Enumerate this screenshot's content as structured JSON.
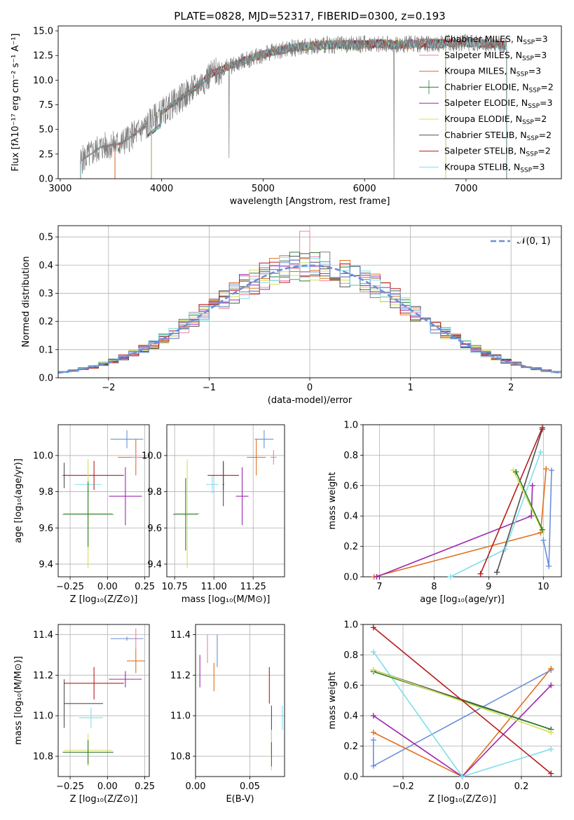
{
  "colors": {
    "Chabrier MILES": "#808080",
    "Salpeter MILES": "#f080a0",
    "Kroupa MILES": "#e07020",
    "Chabrier ELODIE": "#2e7d32",
    "Salpeter ELODIE": "#9c27b0",
    "Kroupa ELODIE": "#d4e157",
    "Chabrier STELIB": "#505050",
    "Salpeter STELIB": "#b71c1c",
    "Kroupa STELIB": "#80deea",
    "extra": "#6a8fd8",
    "gauss": "#6a8fd8",
    "grid": "#b0b0b0"
  },
  "chart_data": [
    {
      "id": "spectrum",
      "type": "line",
      "title": "PLATE=0828, MJD=52317, FIBERID=0300, z=0.193",
      "xlabel": "wavelength [Angstrom, rest frame]",
      "ylabel": "Flux [fλ10⁻¹⁷ erg cm⁻² s⁻¹ A⁻¹]",
      "xlim": [
        2980,
        7940
      ],
      "ylim": [
        0,
        15.5
      ],
      "xticks": [
        "3000",
        "4000",
        "5000",
        "6000",
        "7000"
      ],
      "yticks": [
        "0.0",
        "2.5",
        "5.0",
        "7.5",
        "10.0",
        "12.5",
        "15.0"
      ],
      "grid": false,
      "legend": "top-right",
      "legend_entries": [
        {
          "label": "Chabrier MILES, N",
          "sub": "SSP",
          "suffix": "=3",
          "color": "#808080"
        },
        {
          "label": "Salpeter MILES, N",
          "sub": "SSP",
          "suffix": "=3",
          "color": "#f080a0"
        },
        {
          "label": "Kroupa MILES, N",
          "sub": "SSP",
          "suffix": "=3",
          "color": "#e07020"
        },
        {
          "label": "Chabrier ELODIE, N",
          "sub": "SSP",
          "suffix": "=2",
          "color": "#2e7d32"
        },
        {
          "label": "Salpeter ELODIE, N",
          "sub": "SSP",
          "suffix": "=3",
          "color": "#9c27b0"
        },
        {
          "label": "Kroupa ELODIE, N",
          "sub": "SSP",
          "suffix": "=2",
          "color": "#d4e157"
        },
        {
          "label": "Chabrier STELIB, N",
          "sub": "SSP",
          "suffix": "=2",
          "color": "#505050"
        },
        {
          "label": "Salpeter STELIB, N",
          "sub": "SSP",
          "suffix": "=2",
          "color": "#b71c1c"
        },
        {
          "label": "Kroupa STELIB, N",
          "sub": "SSP",
          "suffix": "=3",
          "color": "#80deea"
        }
      ],
      "continuum_x": [
        3200,
        3400,
        3600,
        3800,
        3950,
        4100,
        4300,
        4500,
        4700,
        4900,
        5100,
        5300,
        5500,
        5700,
        5900,
        6100,
        6300,
        6500,
        6700,
        6900,
        7100,
        7300,
        7500,
        7940
      ],
      "continuum_y": [
        1.8,
        3.2,
        3.6,
        5.0,
        6.3,
        7.5,
        9.0,
        10.7,
        11.5,
        12.3,
        12.9,
        13.3,
        13.5,
        13.6,
        13.6,
        13.7,
        13.6,
        13.7,
        13.7,
        13.8,
        13.8,
        13.6,
        13.5,
        13.4
      ],
      "data_range": [
        3200,
        7400
      ],
      "model_ranges": {
        "Chabrier MILES": [
          3540,
          7400
        ],
        "Salpeter MILES": [
          3540,
          7400
        ],
        "Kroupa MILES": [
          3540,
          7400
        ],
        "Chabrier ELODIE": [
          3900,
          6800
        ],
        "Salpeter ELODIE": [
          3900,
          6800
        ],
        "Kroupa ELODIE": [
          3900,
          6800
        ],
        "Chabrier STELIB": [
          3200,
          7400
        ],
        "Salpeter STELIB": [
          3200,
          7400
        ],
        "Kroupa STELIB": [
          3200,
          7400
        ]
      }
    },
    {
      "id": "residuals",
      "type": "line",
      "xlabel": "(data-model)/error",
      "ylabel": "Normed distribution",
      "xlim": [
        -2.5,
        2.5
      ],
      "ylim": [
        0,
        0.54
      ],
      "xticks": [
        "−2",
        "−1",
        "0",
        "1",
        "2"
      ],
      "yticks": [
        "0.0",
        "0.1",
        "0.2",
        "0.3",
        "0.4",
        "0.5"
      ],
      "grid": true,
      "legend": "top-right",
      "gauss_label": "𝒩(0, 1)",
      "bin_width": 0.1,
      "bin_start": -2.5
    },
    {
      "id": "age_vs_Z",
      "type": "scatter",
      "xlabel": "Z [log₁₀(Z/Z⊙)]",
      "ylabel": "age  [log₁₀(age/yr)]",
      "xlim": [
        -0.33,
        0.28
      ],
      "ylim": [
        9.33,
        10.17
      ],
      "xticks": [
        "−0.25",
        "0.00",
        "0.25"
      ],
      "yticks": [
        "9.4",
        "9.6",
        "9.8",
        "10.0"
      ],
      "grid": true,
      "points": [
        {
          "model": "extra",
          "x": 0.13,
          "y": 10.09,
          "xerr": 0.11,
          "yerr": 0.05
        },
        {
          "model": "Kroupa MILES",
          "x": 0.19,
          "y": 9.99,
          "xerr": 0.12,
          "yerr": 0.1
        },
        {
          "model": "Salpeter MILES",
          "x": 0.19,
          "y": 9.99,
          "xerr": 0.03,
          "yerr": 0.04
        },
        {
          "model": "Salpeter ELODIE",
          "x": 0.12,
          "y": 9.775,
          "xerr": 0.11,
          "yerr": 0.16
        },
        {
          "model": "Kroupa STELIB",
          "x": -0.13,
          "y": 9.84,
          "xerr": 0.09,
          "yerr": 0.05
        },
        {
          "model": "Salpeter STELIB",
          "x": -0.09,
          "y": 9.89,
          "xerr": 0.2,
          "yerr": 0.08
        },
        {
          "model": "Chabrier STELIB",
          "x": -0.29,
          "y": 9.89,
          "xerr": 0.01,
          "yerr": 0.07
        },
        {
          "model": "Kroupa ELODIE",
          "x": -0.13,
          "y": 9.68,
          "xerr": 0.16,
          "yerr": 0.3
        },
        {
          "model": "Chabrier ELODIE",
          "x": -0.13,
          "y": 9.675,
          "xerr": 0.17,
          "yerr": 0.18
        }
      ]
    },
    {
      "id": "age_vs_mass",
      "type": "scatter",
      "xlabel": "mass [log₁₀(M/M⊙)]",
      "ylabel": "",
      "xlim": [
        10.7,
        11.45
      ],
      "ylim": [
        9.33,
        10.17
      ],
      "xticks": [
        "10.75",
        "11.00",
        "11.25"
      ],
      "yticks": [
        "9.4",
        "9.6",
        "9.8",
        "10.0"
      ],
      "grid": true,
      "points": [
        {
          "model": "extra",
          "x": 11.32,
          "y": 10.09,
          "xerr": 0.06,
          "yerr": 0.05
        },
        {
          "model": "Kroupa MILES",
          "x": 11.27,
          "y": 9.99,
          "xerr": 0.06,
          "yerr": 0.1
        },
        {
          "model": "Salpeter MILES",
          "x": 11.38,
          "y": 9.99,
          "xerr": 0.02,
          "yerr": 0.04
        },
        {
          "model": "Salpeter ELODIE",
          "x": 11.18,
          "y": 9.775,
          "xerr": 0.04,
          "yerr": 0.16
        },
        {
          "model": "Kroupa STELIB",
          "x": 10.99,
          "y": 9.84,
          "xerr": 0.04,
          "yerr": 0.05
        },
        {
          "model": "Salpeter STELIB",
          "x": 11.06,
          "y": 9.89,
          "xerr": 0.1,
          "yerr": 0.08
        },
        {
          "model": "Chabrier STELIB",
          "x": 11.06,
          "y": 9.84,
          "xerr": 0.005,
          "yerr": 0.12
        },
        {
          "model": "Kroupa ELODIE",
          "x": 10.83,
          "y": 9.68,
          "xerr": 0.08,
          "yerr": 0.3
        },
        {
          "model": "Chabrier ELODIE",
          "x": 10.82,
          "y": 9.675,
          "xerr": 0.08,
          "yerr": 0.2
        }
      ]
    },
    {
      "id": "weight_vs_age",
      "type": "line",
      "xlabel": "age  [log₁₀(age/yr)]",
      "ylabel": "mass weight",
      "xlim": [
        6.7,
        10.33
      ],
      "ylim": [
        0,
        1
      ],
      "xticks": [
        "7",
        "8",
        "9",
        "10"
      ],
      "yticks": [
        "0.0",
        "0.2",
        "0.4",
        "0.6",
        "0.8",
        "1.0"
      ],
      "grid": true,
      "series": [
        {
          "model": "extra",
          "x": [
            10.0,
            10.1,
            10.15
          ],
          "y": [
            0.24,
            0.07,
            0.7
          ]
        },
        {
          "model": "Kroupa MILES",
          "x": [
            6.9,
            9.95,
            10.05
          ],
          "y": [
            0.0,
            0.29,
            0.71
          ]
        },
        {
          "model": "Salpeter ELODIE",
          "x": [
            6.95,
            9.78,
            9.8
          ],
          "y": [
            0.0,
            0.4,
            0.6
          ]
        },
        {
          "model": "Kroupa STELIB",
          "x": [
            8.3,
            9.3,
            9.95
          ],
          "y": [
            0.0,
            0.18,
            0.82
          ]
        },
        {
          "model": "Chabrier STELIB",
          "x": [
            9.15,
            9.98
          ],
          "y": [
            0.03,
            0.97
          ]
        },
        {
          "model": "Salpeter STELIB",
          "x": [
            8.85,
            9.98
          ],
          "y": [
            0.02,
            0.98
          ]
        },
        {
          "model": "Kroupa ELODIE",
          "x": [
            9.45,
            9.98
          ],
          "y": [
            0.7,
            0.3
          ]
        },
        {
          "model": "Chabrier ELODIE",
          "x": [
            9.5,
            9.98
          ],
          "y": [
            0.69,
            0.31
          ]
        }
      ]
    },
    {
      "id": "mass_vs_Z",
      "type": "scatter",
      "xlabel": "Z [log₁₀(Z/Z⊙)]",
      "ylabel": "mass [log₁₀(M/M⊙)]",
      "xlim": [
        -0.33,
        0.28
      ],
      "ylim": [
        10.7,
        11.45
      ],
      "xticks": [
        "−0.25",
        "0.00",
        "0.25"
      ],
      "yticks": [
        "10.8",
        "11.0",
        "11.2",
        "11.4"
      ],
      "grid": true,
      "points": [
        {
          "model": "extra",
          "x": 0.13,
          "y": 11.38,
          "xerr": 0.11,
          "yerr": 0.01
        },
        {
          "model": "Salpeter MILES",
          "x": 0.19,
          "y": 11.38,
          "xerr": 0.01,
          "yerr": 0.05
        },
        {
          "model": "Kroupa MILES",
          "x": 0.19,
          "y": 11.27,
          "xerr": 0.06,
          "yerr": 0.06
        },
        {
          "model": "Salpeter ELODIE",
          "x": 0.12,
          "y": 11.18,
          "xerr": 0.11,
          "yerr": 0.04
        },
        {
          "model": "Salpeter STELIB",
          "x": -0.09,
          "y": 11.16,
          "xerr": 0.2,
          "yerr": 0.08
        },
        {
          "model": "Chabrier STELIB",
          "x": -0.29,
          "y": 11.06,
          "xerr": 0.0,
          "yerr": 0.12
        },
        {
          "model": "Chabrier STELIB",
          "x": -0.16,
          "y": 11.06,
          "xerr": 0.13,
          "yerr": 0.0
        },
        {
          "model": "Kroupa STELIB",
          "x": -0.11,
          "y": 10.99,
          "xerr": 0.08,
          "yerr": 0.05
        },
        {
          "model": "Kroupa ELODIE",
          "x": -0.13,
          "y": 10.83,
          "xerr": 0.16,
          "yerr": 0.08
        },
        {
          "model": "Chabrier ELODIE",
          "x": -0.13,
          "y": 10.82,
          "xerr": 0.17,
          "yerr": 0.06
        }
      ]
    },
    {
      "id": "mass_vs_EBV",
      "type": "scatter",
      "xlabel": "E(B-V)",
      "ylabel": "",
      "xlim": [
        0,
        0.082
      ],
      "ylim": [
        10.7,
        11.45
      ],
      "xticks": [
        "0.00",
        "0.05"
      ],
      "yticks": [
        "10.8",
        "11.0",
        "11.2",
        "11.4"
      ],
      "grid": true,
      "points": [
        {
          "model": "Salpeter MILES",
          "x": 0.011,
          "y": 11.33,
          "xerr": 0,
          "yerr": 0.07
        },
        {
          "model": "extra",
          "x": 0.02,
          "y": 11.32,
          "xerr": 0,
          "yerr": 0.08
        },
        {
          "model": "Salpeter ELODIE",
          "x": 0.004,
          "y": 11.22,
          "xerr": 0,
          "yerr": 0.08
        },
        {
          "model": "Kroupa MILES",
          "x": 0.017,
          "y": 11.19,
          "xerr": 0,
          "yerr": 0.07
        },
        {
          "model": "Salpeter STELIB",
          "x": 0.068,
          "y": 11.15,
          "xerr": 0,
          "yerr": 0.09
        },
        {
          "model": "Kroupa STELIB",
          "x": 0.08,
          "y": 10.99,
          "xerr": 0,
          "yerr": 0.06
        },
        {
          "model": "Chabrier STELIB",
          "x": 0.07,
          "y": 10.93,
          "xerr": 0,
          "yerr": 0.12
        },
        {
          "model": "Kroupa ELODIE",
          "x": 0.07,
          "y": 10.83,
          "xerr": 0,
          "yerr": 0.1
        },
        {
          "model": "Chabrier ELODIE",
          "x": 0.07,
          "y": 10.81,
          "xerr": 0,
          "yerr": 0.06
        }
      ]
    },
    {
      "id": "weight_vs_Z",
      "type": "line",
      "xlabel": "Z [log₁₀(Z/Z⊙)]",
      "ylabel": "mass weight",
      "xlim": [
        -0.335,
        0.335
      ],
      "ylim": [
        0,
        1
      ],
      "xticks": [
        "−0.2",
        "0.0",
        "0.2"
      ],
      "yticks": [
        "0.0",
        "0.2",
        "0.4",
        "0.6",
        "0.8",
        "1.0"
      ],
      "grid": true,
      "series": [
        {
          "model": "extra",
          "x": [
            -0.3,
            -0.3,
            0.3
          ],
          "y": [
            0.24,
            0.07,
            0.7
          ]
        },
        {
          "model": "Kroupa MILES",
          "x": [
            -0.3,
            0.0,
            0.3
          ],
          "y": [
            0.29,
            0.0,
            0.71
          ]
        },
        {
          "model": "Salpeter ELODIE",
          "x": [
            -0.3,
            0.0,
            0.3
          ],
          "y": [
            0.4,
            0.0,
            0.6
          ]
        },
        {
          "model": "Kroupa STELIB",
          "x": [
            -0.3,
            0.0,
            0.3
          ],
          "y": [
            0.82,
            0.0,
            0.18
          ]
        },
        {
          "model": "Chabrier STELIB",
          "x": [
            -0.3,
            0.3
          ],
          "y": [
            0.7,
            0.31
          ]
        },
        {
          "model": "Chabrier ELODIE",
          "x": [
            -0.3,
            0.3
          ],
          "y": [
            0.69,
            0.31
          ]
        },
        {
          "model": "Kroupa ELODIE",
          "x": [
            -0.3,
            0.3
          ],
          "y": [
            0.7,
            0.29
          ]
        },
        {
          "model": "Salpeter STELIB",
          "x": [
            -0.3,
            0.3
          ],
          "y": [
            0.98,
            0.02
          ]
        }
      ]
    }
  ]
}
